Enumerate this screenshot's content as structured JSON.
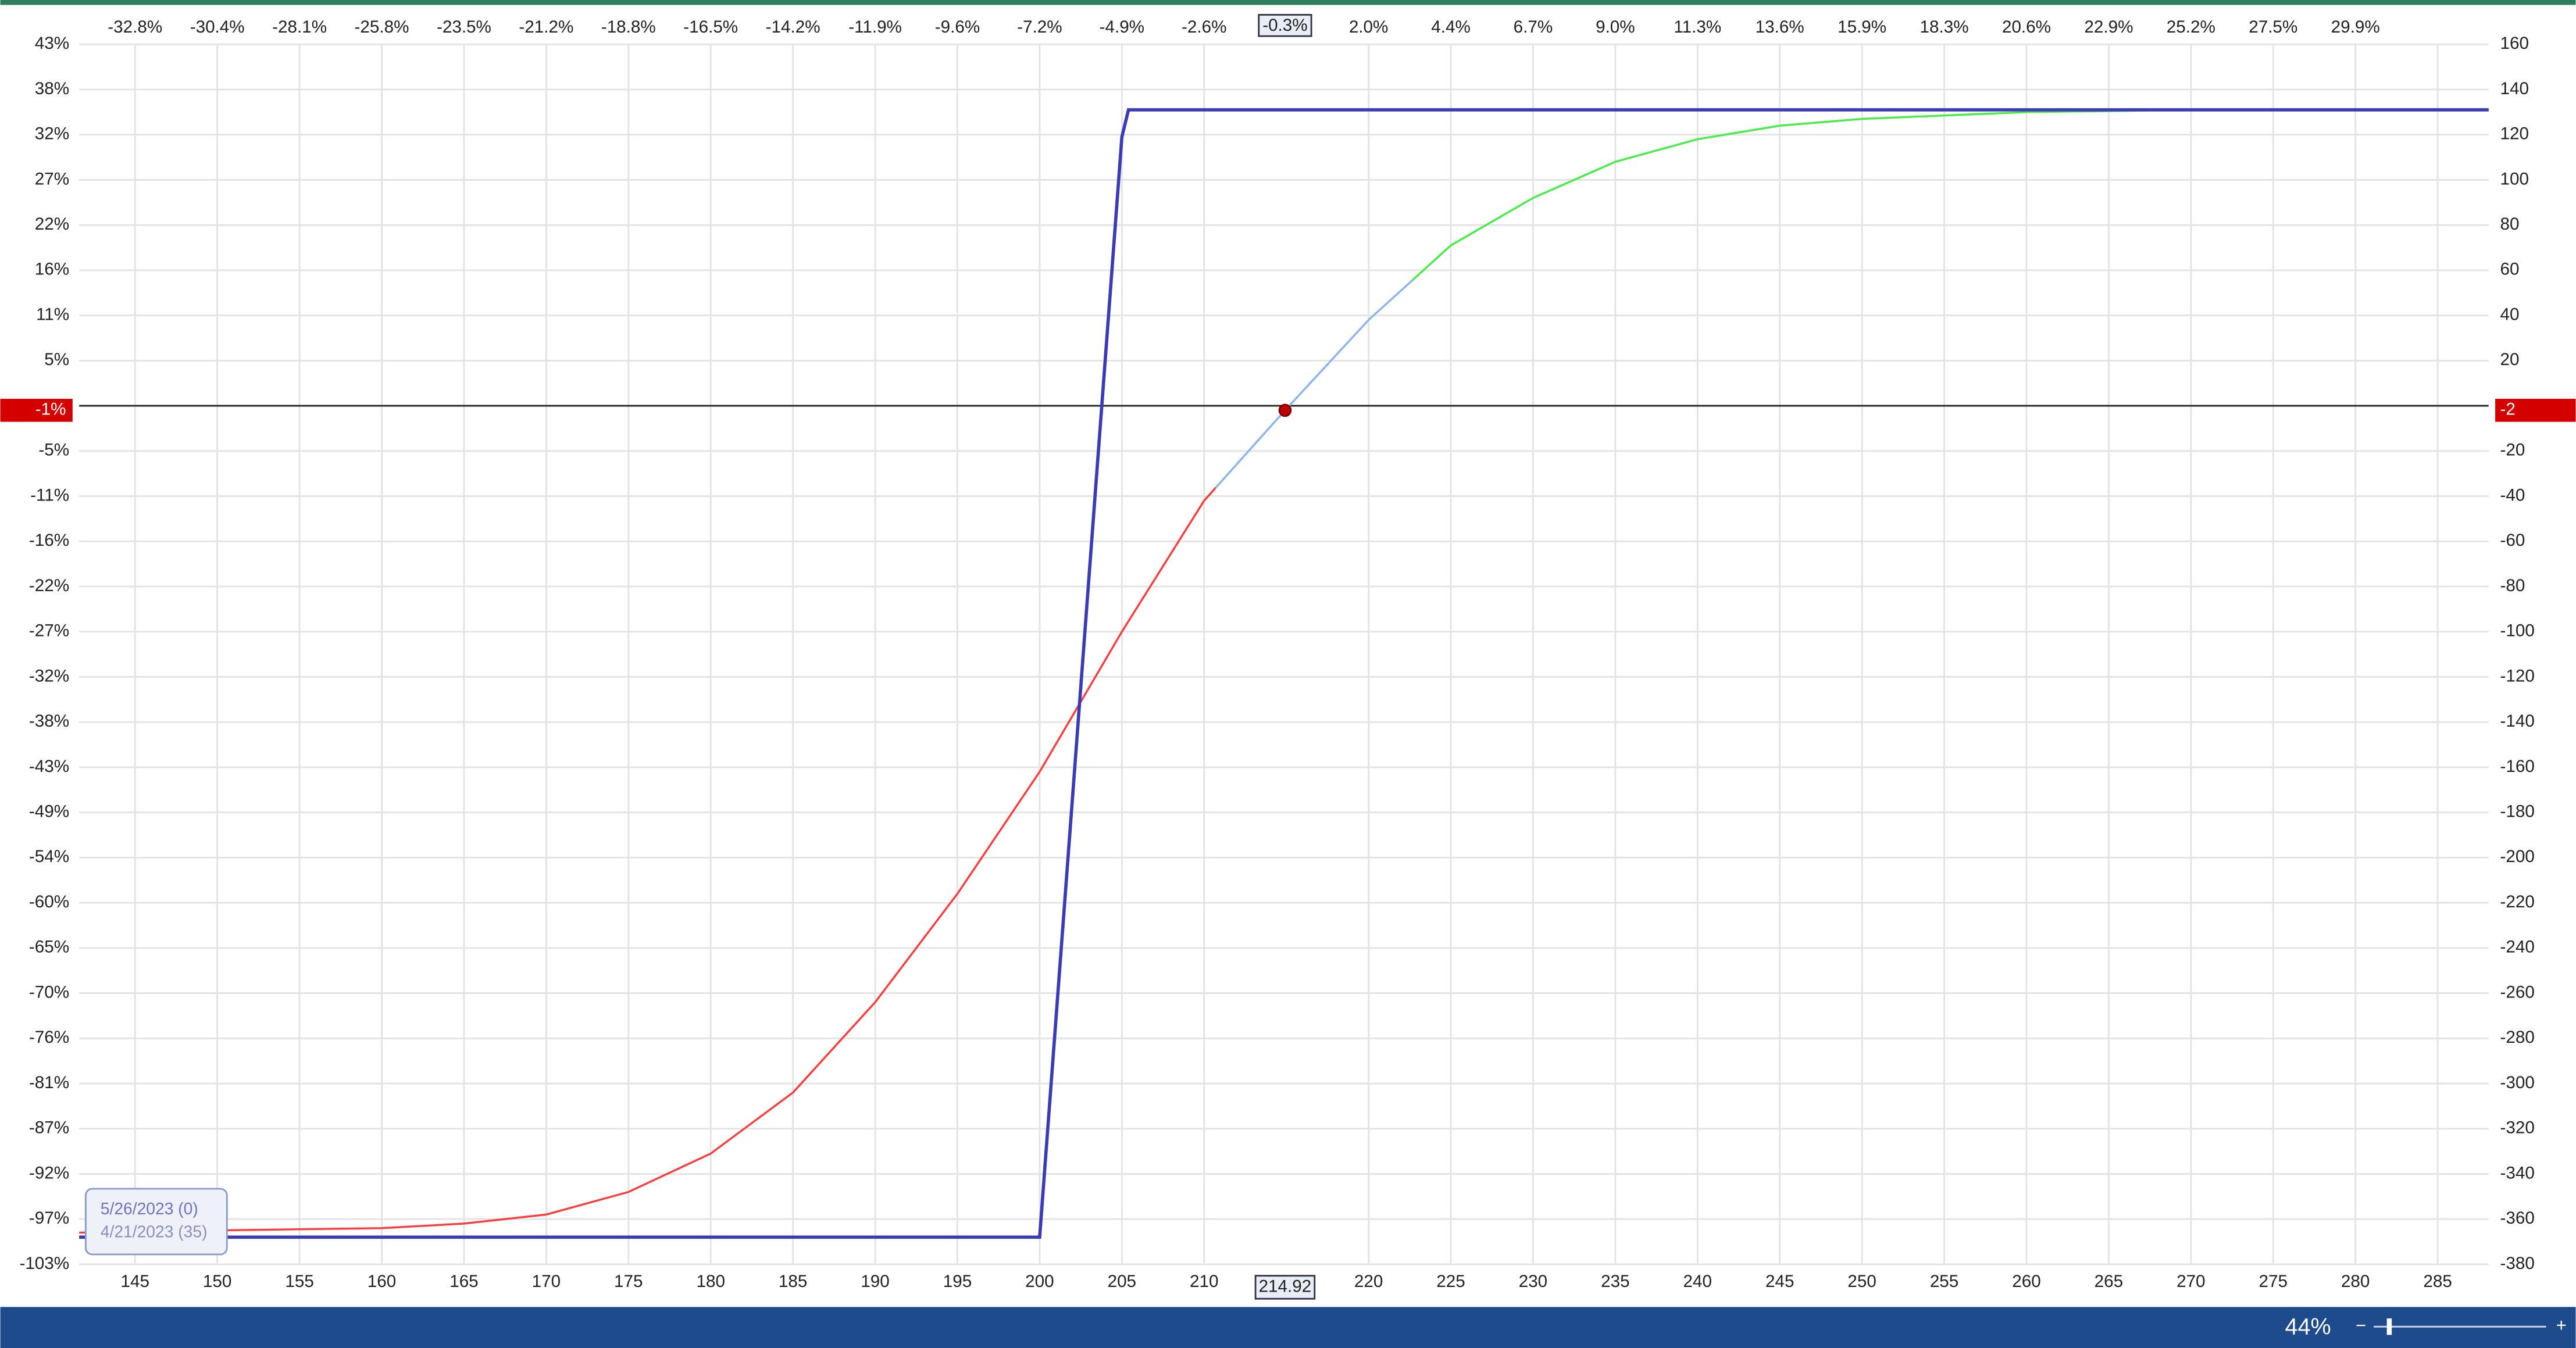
{
  "chart_data": {
    "type": "line",
    "xlim": [
      141.6,
      288.1
    ],
    "ylim": [
      -380,
      160
    ],
    "grid": true,
    "xticks": [
      145,
      150,
      155,
      160,
      165,
      170,
      175,
      180,
      185,
      190,
      195,
      200,
      205,
      210,
      220,
      225,
      230,
      235,
      240,
      245,
      250,
      255,
      260,
      265,
      270,
      275,
      280,
      285
    ],
    "x_pct_ticks": [
      {
        "value": 145,
        "label": "-32.8%"
      },
      {
        "value": 150,
        "label": "-30.4%"
      },
      {
        "value": 155,
        "label": "-28.1%"
      },
      {
        "value": 160,
        "label": "-25.8%"
      },
      {
        "value": 165,
        "label": "-23.5%"
      },
      {
        "value": 170,
        "label": "-21.2%"
      },
      {
        "value": 175,
        "label": "-18.8%"
      },
      {
        "value": 180,
        "label": "-16.5%"
      },
      {
        "value": 185,
        "label": "-14.2%"
      },
      {
        "value": 190,
        "label": "-11.9%"
      },
      {
        "value": 195,
        "label": "-9.6%"
      },
      {
        "value": 200,
        "label": "-7.2%"
      },
      {
        "value": 205,
        "label": "-4.9%"
      },
      {
        "value": 210,
        "label": "-2.6%"
      },
      {
        "value": 220,
        "label": "2.0%"
      },
      {
        "value": 225,
        "label": "4.4%"
      },
      {
        "value": 230,
        "label": "6.7%"
      },
      {
        "value": 235,
        "label": "9.0%"
      },
      {
        "value": 240,
        "label": "11.3%"
      },
      {
        "value": 245,
        "label": "13.6%"
      },
      {
        "value": 250,
        "label": "15.9%"
      },
      {
        "value": 255,
        "label": "18.3%"
      },
      {
        "value": 260,
        "label": "20.6%"
      },
      {
        "value": 265,
        "label": "22.9%"
      },
      {
        "value": 270,
        "label": "25.2%"
      },
      {
        "value": 275,
        "label": "27.5%"
      },
      {
        "value": 280,
        "label": "29.9%"
      }
    ],
    "yticks": [
      160,
      140,
      120,
      100,
      80,
      60,
      40,
      20,
      -20,
      -40,
      -60,
      -80,
      -100,
      -120,
      -140,
      -160,
      -180,
      -200,
      -220,
      -240,
      -260,
      -280,
      -300,
      -320,
      -340,
      -360,
      -380
    ],
    "y_pct_ticks": [
      {
        "value": 160,
        "label": "43%"
      },
      {
        "value": 140,
        "label": "38%"
      },
      {
        "value": 120,
        "label": "32%"
      },
      {
        "value": 100,
        "label": "27%"
      },
      {
        "value": 80,
        "label": "22%"
      },
      {
        "value": 60,
        "label": "16%"
      },
      {
        "value": 40,
        "label": "11%"
      },
      {
        "value": 20,
        "label": "5%"
      },
      {
        "value": -20,
        "label": "-5%"
      },
      {
        "value": -40,
        "label": "-11%"
      },
      {
        "value": -60,
        "label": "-16%"
      },
      {
        "value": -80,
        "label": "-22%"
      },
      {
        "value": -100,
        "label": "-27%"
      },
      {
        "value": -120,
        "label": "-32%"
      },
      {
        "value": -140,
        "label": "-38%"
      },
      {
        "value": -160,
        "label": "-43%"
      },
      {
        "value": -180,
        "label": "-49%"
      },
      {
        "value": -200,
        "label": "-54%"
      },
      {
        "value": -220,
        "label": "-60%"
      },
      {
        "value": -240,
        "label": "-65%"
      },
      {
        "value": -260,
        "label": "-70%"
      },
      {
        "value": -280,
        "label": "-76%"
      },
      {
        "value": -300,
        "label": "-81%"
      },
      {
        "value": -320,
        "label": "-87%"
      },
      {
        "value": -340,
        "label": "-92%"
      },
      {
        "value": -360,
        "label": "-97%"
      },
      {
        "value": -380,
        "label": "-103%"
      }
    ],
    "series": [
      {
        "name": "5/26/2023 (0)",
        "color": "#3b3bb5",
        "x": [
          141.6,
          200,
          205,
          205.4,
          288.1
        ],
        "values": [
          -368,
          -368,
          119,
          131,
          131
        ]
      },
      {
        "name": "4/21/2023 (35)",
        "color": "#ff3a3a",
        "x": [
          141.6,
          150,
          160,
          165,
          170,
          175,
          180,
          185,
          190,
          195,
          200,
          205,
          210,
          214.92,
          220,
          225,
          230,
          235,
          240,
          245,
          250,
          260,
          270,
          288.1
        ],
        "values": [
          -366,
          -365,
          -364,
          -362,
          -358,
          -348,
          -331,
          -304,
          -264,
          -216,
          -162,
          -100,
          -42,
          -2,
          38,
          71,
          92,
          108,
          118,
          124,
          127,
          130,
          131,
          131
        ]
      }
    ],
    "cursor": {
      "x": 214.92,
      "y": -2,
      "x_pct": "-0.3%",
      "y_pct": "-1%"
    }
  },
  "status_bar": {
    "zoom": "44%"
  }
}
